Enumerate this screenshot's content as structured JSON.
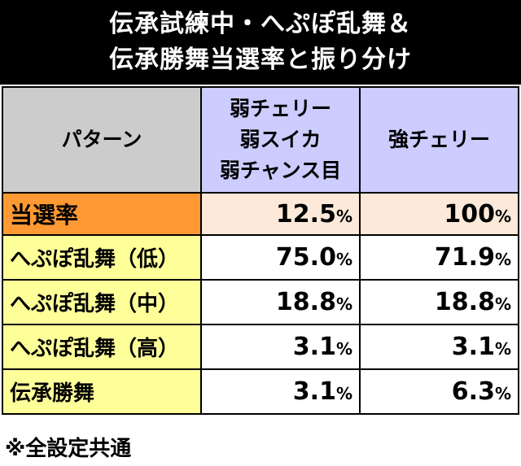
{
  "title": {
    "line1": "伝承試練中・へぷぽ乱舞＆",
    "line2": "伝承勝舞当選率と振り分け"
  },
  "table": {
    "header": {
      "label": "パターン",
      "col1_lines": [
        "弱チェリー",
        "弱スイカ",
        "弱チャンス目"
      ],
      "col2": "強チェリー"
    },
    "rows": [
      {
        "label": "当選率",
        "v1": "12.5",
        "v2": "100",
        "unit": "%"
      },
      {
        "label": "へぷぽ乱舞（低）",
        "v1": "75.0",
        "v2": "71.9",
        "unit": "%"
      },
      {
        "label": "へぷぽ乱舞（中）",
        "v1": "18.8",
        "v2": "18.8",
        "unit": "%"
      },
      {
        "label": "へぷぽ乱舞（高）",
        "v1": "3.1",
        "v2": "3.1",
        "unit": "%"
      },
      {
        "label": "伝承勝舞",
        "v1": "3.1",
        "v2": "6.3",
        "unit": "%"
      }
    ]
  },
  "note": "※全設定共通",
  "colors": {
    "title_bg": "#000000",
    "header_bg": "#ccccff",
    "header_label_bg": "#cccccc",
    "rate_label_bg": "#ff9933",
    "rate_value_bg": "#fde9d9",
    "row_label_bg": "#ffff99"
  }
}
